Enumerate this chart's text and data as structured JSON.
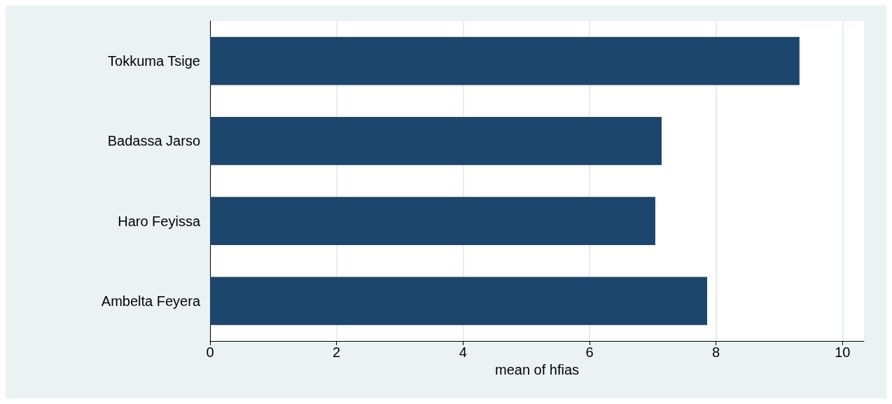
{
  "chart_data": {
    "type": "bar",
    "orientation": "horizontal",
    "xlabel": "mean of hfias",
    "categories": [
      "Tokkuma Tsige",
      "Badassa Jarso",
      "Haro Feyissa",
      "Ambelta Feyera"
    ],
    "values": [
      9.32,
      7.14,
      7.04,
      7.86
    ],
    "color": "#1c466c",
    "xlim": [
      0,
      10.34
    ],
    "xticks": [
      0,
      2,
      4,
      6,
      8,
      10
    ],
    "grid": "x"
  }
}
